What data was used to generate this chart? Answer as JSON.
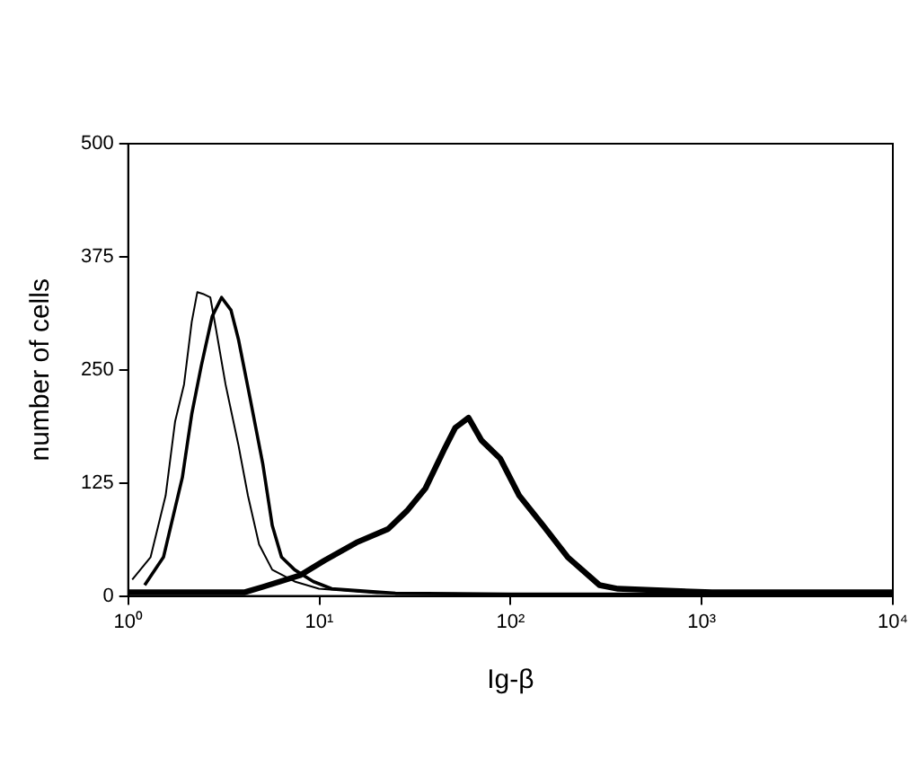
{
  "chart_data": {
    "type": "line",
    "xlabel": "Ig-β",
    "ylabel": "number of cells",
    "log": "x",
    "xlim": [
      1,
      10000
    ],
    "xticks": [
      {
        "value": 1,
        "label": "10⁰"
      },
      {
        "value": 10,
        "label": "10¹"
      },
      {
        "value": 100,
        "label": "10²"
      },
      {
        "value": 1000,
        "label": "10³"
      },
      {
        "value": 10000,
        "label": "10⁴"
      }
    ],
    "ylim": [
      0,
      500
    ],
    "yticks": [
      0,
      125,
      250,
      375,
      500
    ],
    "grid": false,
    "legend": false,
    "marker": "none",
    "line_style": "solid",
    "series": [
      {
        "color": "#000000",
        "x": [
          1.05,
          1.31,
          1.57,
          1.76,
          1.96,
          2.15,
          2.3,
          2.46,
          2.69,
          2.88,
          3.23,
          3.78,
          4.23,
          4.84,
          5.67,
          7.42,
          9.95,
          20,
          100,
          1000,
          10000
        ],
        "values": [
          18,
          43,
          111,
          193,
          234,
          303,
          336,
          334,
          330,
          295,
          234,
          166,
          111,
          57,
          29,
          16,
          8,
          3,
          2,
          2,
          2
        ]
      },
      {
        "color": "#000000",
        "x": [
          1.22,
          1.53,
          1.92,
          2.15,
          2.41,
          2.75,
          3.08,
          3.45,
          3.78,
          4.32,
          5.06,
          5.67,
          6.34,
          7.42,
          9.29,
          11.6,
          25,
          100,
          1000,
          10000
        ],
        "values": [
          12,
          43,
          131,
          201,
          254,
          309,
          330,
          316,
          283,
          221,
          146,
          78,
          43,
          29,
          16,
          8,
          3,
          2,
          2,
          2
        ]
      },
      {
        "color": "#000000",
        "x": [
          1,
          4.04,
          5.06,
          7.94,
          10.6,
          15.6,
          22.9,
          28.7,
          35.9,
          45,
          51.4,
          60.3,
          70.5,
          88.3,
          111,
          148,
          199,
          292,
          365,
          1130,
          10000
        ],
        "values": [
          4,
          4,
          10,
          23,
          39,
          59,
          74,
          94,
          119,
          162,
          186,
          197,
          172,
          152,
          111,
          78,
          43,
          12,
          8,
          4,
          4
        ]
      }
    ]
  }
}
